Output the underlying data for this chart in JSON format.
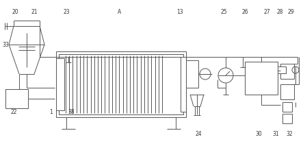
{
  "fig_width": 4.43,
  "fig_height": 2.13,
  "dpi": 100,
  "line_color": "#555555",
  "line_width": 0.7,
  "label_fontsize": 5.5,
  "label_color": "#333333"
}
